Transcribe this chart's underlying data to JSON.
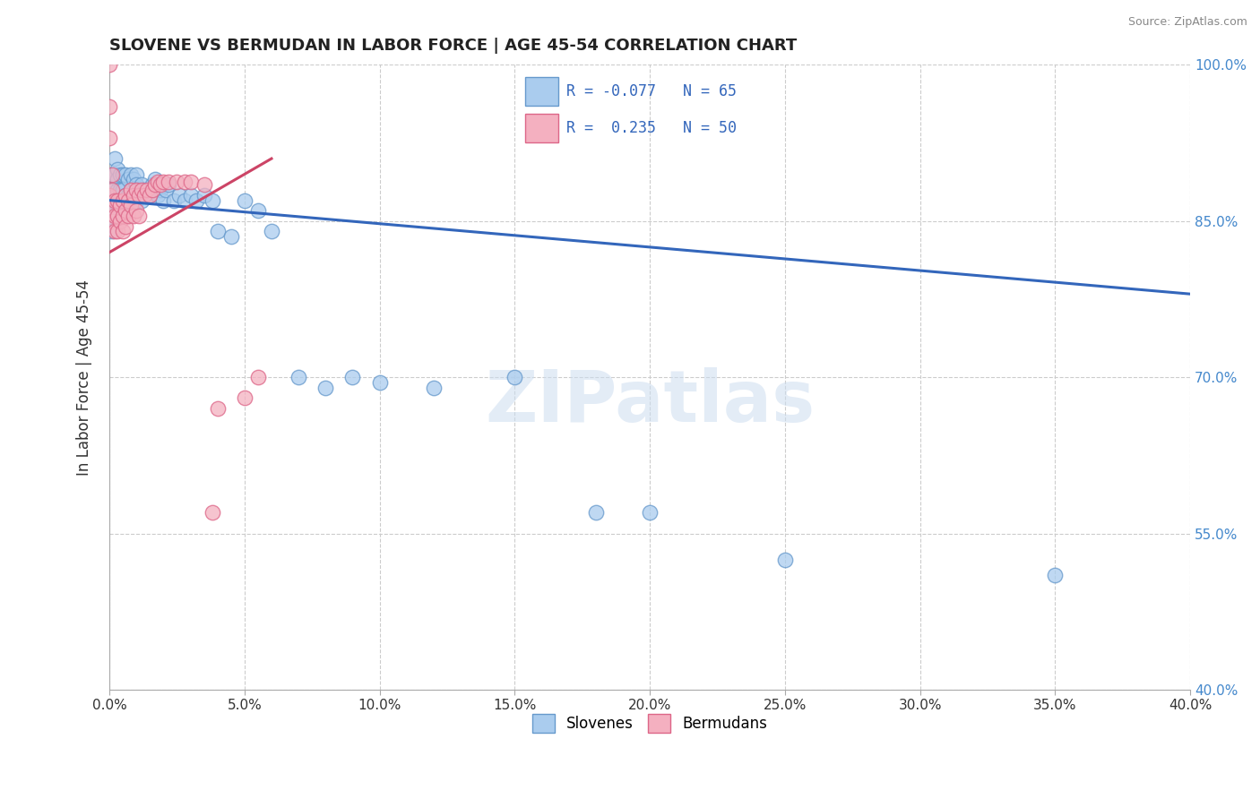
{
  "title": "SLOVENE VS BERMUDAN IN LABOR FORCE | AGE 45-54 CORRELATION CHART",
  "source_text": "Source: ZipAtlas.com",
  "ylabel": "In Labor Force | Age 45-54",
  "xlim": [
    0.0,
    0.4
  ],
  "ylim": [
    0.4,
    1.0
  ],
  "xticks": [
    0.0,
    0.05,
    0.1,
    0.15,
    0.2,
    0.25,
    0.3,
    0.35,
    0.4
  ],
  "yticks": [
    0.4,
    0.55,
    0.7,
    0.85,
    1.0
  ],
  "background_color": "#ffffff",
  "slovene_color": "#aaccee",
  "bermudan_color": "#f4b0c0",
  "slovene_edge_color": "#6699cc",
  "bermudan_edge_color": "#dd6688",
  "slovene_line_color": "#3366bb",
  "bermudan_line_color": "#cc4466",
  "R_slovene": -0.077,
  "N_slovene": 65,
  "R_bermudan": 0.235,
  "N_bermudan": 50,
  "watermark": "ZIPatlas",
  "slovene_x": [
    0.001,
    0.001,
    0.001,
    0.001,
    0.001,
    0.001,
    0.002,
    0.002,
    0.002,
    0.003,
    0.003,
    0.003,
    0.003,
    0.004,
    0.004,
    0.004,
    0.005,
    0.005,
    0.005,
    0.006,
    0.006,
    0.007,
    0.007,
    0.008,
    0.008,
    0.009,
    0.009,
    0.01,
    0.01,
    0.01,
    0.011,
    0.012,
    0.012,
    0.013,
    0.014,
    0.015,
    0.016,
    0.017,
    0.018,
    0.019,
    0.02,
    0.021,
    0.022,
    0.024,
    0.026,
    0.028,
    0.03,
    0.032,
    0.035,
    0.038,
    0.04,
    0.045,
    0.05,
    0.055,
    0.06,
    0.07,
    0.08,
    0.09,
    0.1,
    0.12,
    0.15,
    0.18,
    0.2,
    0.25,
    0.35
  ],
  "slovene_y": [
    0.895,
    0.88,
    0.87,
    0.86,
    0.85,
    0.84,
    0.91,
    0.895,
    0.875,
    0.9,
    0.89,
    0.88,
    0.865,
    0.895,
    0.88,
    0.865,
    0.895,
    0.88,
    0.865,
    0.895,
    0.875,
    0.89,
    0.875,
    0.895,
    0.88,
    0.89,
    0.875,
    0.895,
    0.885,
    0.87,
    0.88,
    0.885,
    0.87,
    0.88,
    0.875,
    0.875,
    0.885,
    0.89,
    0.875,
    0.88,
    0.87,
    0.88,
    0.885,
    0.87,
    0.875,
    0.87,
    0.875,
    0.87,
    0.875,
    0.87,
    0.84,
    0.835,
    0.87,
    0.86,
    0.84,
    0.7,
    0.69,
    0.7,
    0.695,
    0.69,
    0.7,
    0.57,
    0.57,
    0.525,
    0.51
  ],
  "bermudan_x": [
    0.0,
    0.0,
    0.0,
    0.0,
    0.001,
    0.001,
    0.001,
    0.001,
    0.002,
    0.002,
    0.002,
    0.003,
    0.003,
    0.003,
    0.004,
    0.004,
    0.005,
    0.005,
    0.005,
    0.006,
    0.006,
    0.006,
    0.007,
    0.007,
    0.008,
    0.008,
    0.009,
    0.009,
    0.01,
    0.01,
    0.011,
    0.011,
    0.012,
    0.013,
    0.014,
    0.015,
    0.016,
    0.017,
    0.018,
    0.019,
    0.02,
    0.022,
    0.025,
    0.028,
    0.03,
    0.035,
    0.038,
    0.04,
    0.05,
    0.055
  ],
  "bermudan_y": [
    1.0,
    0.96,
    0.93,
    0.875,
    0.895,
    0.88,
    0.865,
    0.85,
    0.87,
    0.855,
    0.84,
    0.87,
    0.855,
    0.84,
    0.865,
    0.85,
    0.87,
    0.855,
    0.84,
    0.875,
    0.86,
    0.845,
    0.87,
    0.855,
    0.88,
    0.865,
    0.875,
    0.855,
    0.88,
    0.86,
    0.875,
    0.855,
    0.88,
    0.875,
    0.88,
    0.875,
    0.88,
    0.885,
    0.888,
    0.885,
    0.888,
    0.888,
    0.888,
    0.888,
    0.888,
    0.885,
    0.57,
    0.67,
    0.68,
    0.7
  ]
}
